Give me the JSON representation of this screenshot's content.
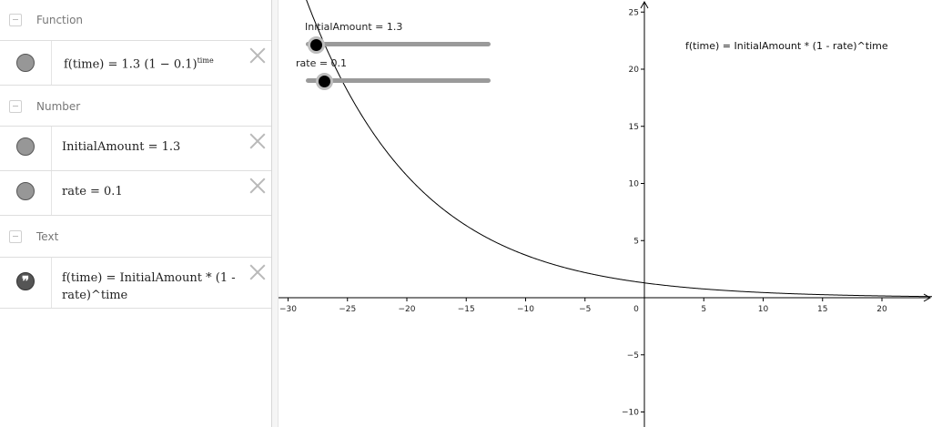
{
  "algebra": {
    "categories": {
      "function": "Function",
      "number": "Number",
      "text": "Text"
    },
    "function_row": {
      "prefix": "f(time) = 1.3 (1 − 0.1)",
      "exponent": "time"
    },
    "initial_amount_row": "InitialAmount = 1.3",
    "rate_row": "rate = 0.1",
    "text_row_line1": "f(time) = InitialAmount * (1 -",
    "text_row_line2": "rate)^time",
    "quote_glyph": "❞"
  },
  "graphics": {
    "sliders": {
      "initial_amount": {
        "label": "InitialAmount = 1.3",
        "value": 1.3,
        "min": 0,
        "max": 25
      },
      "rate": {
        "label": "rate = 0.1",
        "value": 0.1,
        "min": 0,
        "max": 1
      }
    },
    "text_label": "f(time) = InitialAmount * (1 - rate)^time",
    "function": {
      "initial_amount": 1.3,
      "rate": 0.1
    },
    "x_ticks": [
      -30,
      -25,
      -20,
      -15,
      -10,
      -5,
      5,
      10,
      15,
      20
    ],
    "y_ticks": [
      -10,
      -5,
      5,
      10,
      15,
      20,
      25
    ],
    "origin_label": "0",
    "axis_color": "#000000",
    "curve_color": "#000000"
  }
}
